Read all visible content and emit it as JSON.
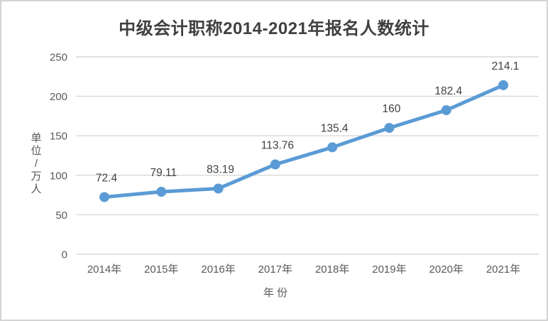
{
  "window": {
    "background": "#ffffff",
    "border_color": "#d4d4d4"
  },
  "chart_data": {
    "type": "line",
    "title": "中级会计职称2014-2021年报名人数统计",
    "xlabel": "年 份",
    "ylabel": "单位/万人",
    "ylabel_orientation": "vertical-stacked",
    "categories": [
      "2014年",
      "2015年",
      "2016年",
      "2017年",
      "2018年",
      "2019年",
      "2020年",
      "2021年"
    ],
    "values": [
      72.4,
      79.11,
      83.19,
      113.76,
      135.4,
      160,
      182.4,
      214.1
    ],
    "data_labels": [
      "72.4",
      "79.11",
      "83.19",
      "113.76",
      "135.4",
      "160",
      "182.4",
      "214.1"
    ],
    "yticks": [
      0,
      50,
      100,
      150,
      200,
      250
    ],
    "ylim": [
      0,
      250
    ],
    "grid": "horizontal",
    "legend": "none",
    "line_color": "#5B9BD5",
    "marker": "circle",
    "gridline_color": "#D9D9D9",
    "axis_text_color": "#595959",
    "data_label_color": "#404040",
    "title_color": "#404040"
  }
}
